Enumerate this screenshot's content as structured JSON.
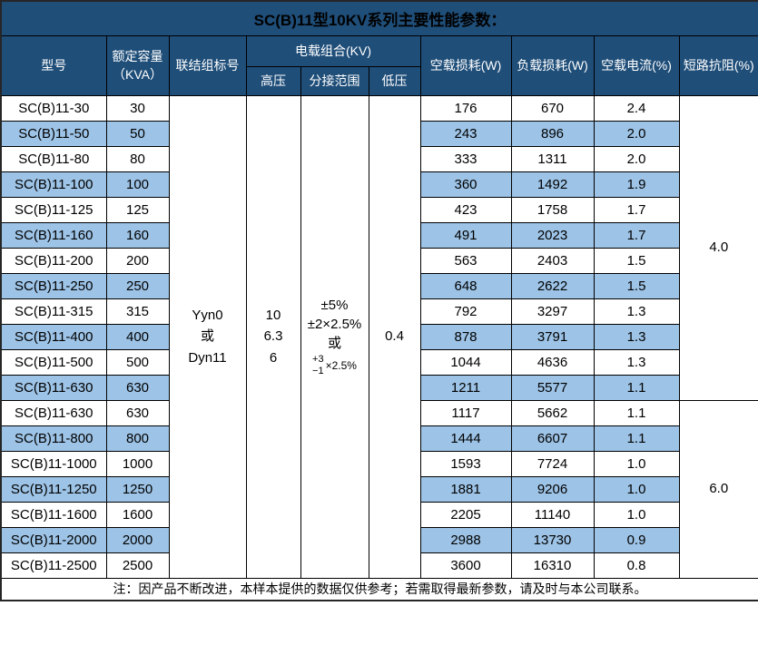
{
  "title": "SC(B)11型10KV系列主要性能参数：",
  "header": {
    "model": "型号",
    "capacity_line1": "额定容量",
    "capacity_line2": "（KVA）",
    "connection_group": "联结组标号",
    "voltage_combo": "电载组合(KV)",
    "high_voltage": "高压",
    "tap_range": "分接范围",
    "low_voltage": "低压",
    "no_load_loss": "空载损耗(W)",
    "load_loss": "负载损耗(W)",
    "no_load_current": "空载电流(%)",
    "short_circuit_impedance": "短路抗阻(%)"
  },
  "merged_cells": {
    "connection_lines": [
      "Yyn0",
      "或",
      "Dyn11"
    ],
    "high_voltage_lines": [
      "10",
      "6.3",
      "6"
    ],
    "tap_range_lines": [
      "±5%",
      "±2×2.5%",
      "或"
    ],
    "tap_fraction_top": "+3",
    "tap_fraction_bottom": "−1",
    "tap_fraction_multiplier": "×2.5%",
    "low_voltage": "0.4",
    "impedance_group_1": "4.0",
    "impedance_group_2": "6.0"
  },
  "rows": [
    {
      "model": "SC(B)11-30",
      "capacity": "30",
      "no_load_loss": "176",
      "load_loss": "670",
      "no_load_current": "2.4"
    },
    {
      "model": "SC(B)11-50",
      "capacity": "50",
      "no_load_loss": "243",
      "load_loss": "896",
      "no_load_current": "2.0"
    },
    {
      "model": "SC(B)11-80",
      "capacity": "80",
      "no_load_loss": "333",
      "load_loss": "1311",
      "no_load_current": "2.0"
    },
    {
      "model": "SC(B)11-100",
      "capacity": "100",
      "no_load_loss": "360",
      "load_loss": "1492",
      "no_load_current": "1.9"
    },
    {
      "model": "SC(B)11-125",
      "capacity": "125",
      "no_load_loss": "423",
      "load_loss": "1758",
      "no_load_current": "1.7"
    },
    {
      "model": "SC(B)11-160",
      "capacity": "160",
      "no_load_loss": "491",
      "load_loss": "2023",
      "no_load_current": "1.7"
    },
    {
      "model": "SC(B)11-200",
      "capacity": "200",
      "no_load_loss": "563",
      "load_loss": "2403",
      "no_load_current": "1.5"
    },
    {
      "model": "SC(B)11-250",
      "capacity": "250",
      "no_load_loss": "648",
      "load_loss": "2622",
      "no_load_current": "1.5"
    },
    {
      "model": "SC(B)11-315",
      "capacity": "315",
      "no_load_loss": "792",
      "load_loss": "3297",
      "no_load_current": "1.3"
    },
    {
      "model": "SC(B)11-400",
      "capacity": "400",
      "no_load_loss": "878",
      "load_loss": "3791",
      "no_load_current": "1.3"
    },
    {
      "model": "SC(B)11-500",
      "capacity": "500",
      "no_load_loss": "1044",
      "load_loss": "4636",
      "no_load_current": "1.3"
    },
    {
      "model": "SC(B)11-630",
      "capacity": "630",
      "no_load_loss": "1211",
      "load_loss": "5577",
      "no_load_current": "1.1"
    },
    {
      "model": "SC(B)11-630",
      "capacity": "630",
      "no_load_loss": "1117",
      "load_loss": "5662",
      "no_load_current": "1.1"
    },
    {
      "model": "SC(B)11-800",
      "capacity": "800",
      "no_load_loss": "1444",
      "load_loss": "6607",
      "no_load_current": "1.1"
    },
    {
      "model": "SC(B)11-1000",
      "capacity": "1000",
      "no_load_loss": "1593",
      "load_loss": "7724",
      "no_load_current": "1.0"
    },
    {
      "model": "SC(B)11-1250",
      "capacity": "1250",
      "no_load_loss": "1881",
      "load_loss": "9206",
      "no_load_current": "1.0"
    },
    {
      "model": "SC(B)11-1600",
      "capacity": "1600",
      "no_load_loss": "2205",
      "load_loss": "11140",
      "no_load_current": "1.0"
    },
    {
      "model": "SC(B)11-2000",
      "capacity": "2000",
      "no_load_loss": "2988",
      "load_loss": "13730",
      "no_load_current": "0.9"
    },
    {
      "model": "SC(B)11-2500",
      "capacity": "2500",
      "no_load_loss": "3600",
      "load_loss": "16310",
      "no_load_current": "0.8"
    }
  ],
  "note": "注：因产品不断改进，本样本提供的数据仅供参考；若需取得最新参数，请及时与本公司联系。",
  "colors": {
    "header_bg": "#1F4E79",
    "stripe_bg": "#9DC3E6",
    "header_text": "#FFFFFF",
    "body_text": "#000000",
    "grid_line": "#000000",
    "outer_border": "#262626"
  }
}
